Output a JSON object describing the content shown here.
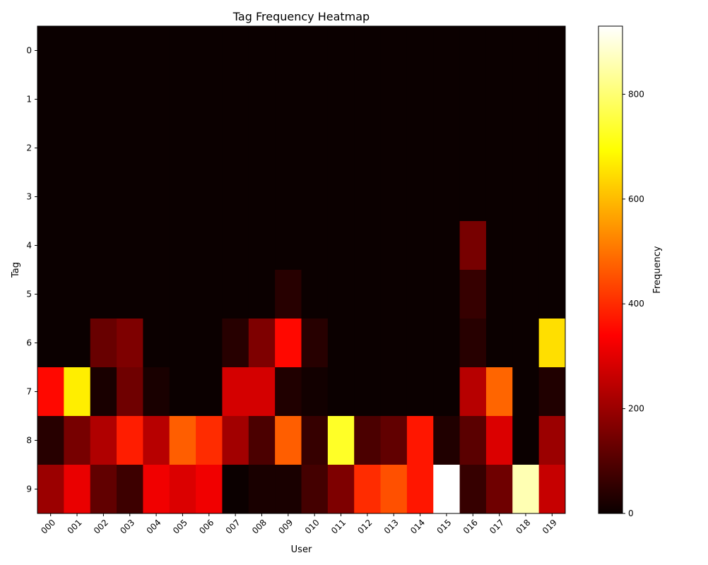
{
  "chart_data": {
    "type": "heatmap",
    "title": "Tag Frequency Heatmap",
    "xlabel": "User",
    "ylabel": "Tag",
    "x_categories": [
      "000",
      "001",
      "002",
      "003",
      "004",
      "005",
      "006",
      "007",
      "008",
      "009",
      "010",
      "011",
      "012",
      "013",
      "014",
      "015",
      "016",
      "017",
      "018",
      "019"
    ],
    "y_categories": [
      "0",
      "1",
      "2",
      "3",
      "4",
      "5",
      "6",
      "7",
      "8",
      "9"
    ],
    "colormap": "hot",
    "colorbar": {
      "label": "Frequency",
      "range": [
        0,
        930
      ],
      "ticks": [
        0,
        200,
        400,
        600,
        800
      ]
    },
    "values": [
      [
        0,
        0,
        0,
        0,
        0,
        0,
        0,
        0,
        0,
        0,
        0,
        0,
        0,
        0,
        0,
        0,
        0,
        0,
        0,
        0
      ],
      [
        0,
        0,
        0,
        0,
        0,
        0,
        0,
        0,
        0,
        0,
        0,
        0,
        0,
        0,
        0,
        0,
        0,
        0,
        0,
        0
      ],
      [
        0,
        0,
        0,
        0,
        0,
        0,
        0,
        0,
        0,
        0,
        0,
        0,
        0,
        0,
        0,
        0,
        0,
        0,
        0,
        0
      ],
      [
        0,
        0,
        0,
        0,
        0,
        0,
        0,
        0,
        0,
        0,
        0,
        0,
        0,
        0,
        0,
        0,
        0,
        0,
        0,
        0
      ],
      [
        0,
        0,
        0,
        0,
        0,
        0,
        0,
        0,
        0,
        0,
        0,
        0,
        0,
        0,
        0,
        0,
        150,
        0,
        0,
        0
      ],
      [
        0,
        0,
        0,
        0,
        0,
        0,
        0,
        0,
        0,
        40,
        0,
        0,
        0,
        0,
        0,
        0,
        60,
        0,
        0,
        0
      ],
      [
        0,
        0,
        130,
        160,
        0,
        0,
        0,
        40,
        160,
        350,
        40,
        0,
        0,
        0,
        0,
        0,
        40,
        0,
        0,
        650
      ],
      [
        350,
        670,
        20,
        140,
        20,
        0,
        0,
        280,
        280,
        30,
        10,
        0,
        0,
        0,
        0,
        0,
        240,
        480,
        0,
        30
      ],
      [
        40,
        150,
        230,
        380,
        240,
        470,
        400,
        210,
        90,
        470,
        60,
        730,
        90,
        120,
        370,
        30,
        110,
        290,
        0,
        200
      ],
      [
        200,
        310,
        120,
        70,
        320,
        290,
        320,
        0,
        20,
        20,
        80,
        160,
        400,
        450,
        370,
        930,
        60,
        140,
        860,
        260
      ]
    ]
  }
}
